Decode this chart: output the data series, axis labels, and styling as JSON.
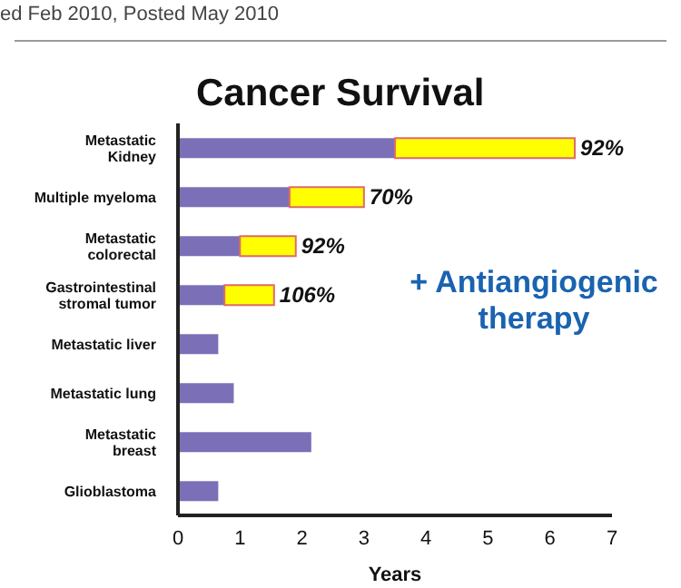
{
  "chart_data": {
    "type": "bar",
    "orientation": "horizontal",
    "stacked": true,
    "title": "Cancer Survival",
    "xlabel": "Years",
    "categories": [
      "Metastatic Kidney",
      "Multiple myeloma",
      "Metastatic colorectal",
      "Gastrointestinal stromal tumor",
      "Metastatic liver",
      "Metastatic lung",
      "Metastatic breast",
      "Glioblastoma"
    ],
    "series": [
      {
        "color": "#7b70b8",
        "values": [
          3.5,
          1.8,
          1.0,
          0.75,
          0.65,
          0.9,
          2.15,
          0.65
        ]
      },
      {
        "color": "#ffff00",
        "values": [
          2.9,
          1.2,
          0.9,
          0.8,
          null,
          null,
          null,
          null
        ]
      }
    ],
    "xlim": [
      0,
      7
    ],
    "xticks": [
      0,
      1,
      2,
      3,
      4,
      5,
      6,
      7
    ],
    "annotations": [
      "ed Feb 2010, Posted May 2010",
      "+ Antiangiogenic therapy",
      {
        "text": "92%",
        "x": 6.4,
        "y": "Metastatic Kidney"
      },
      {
        "text": "70%",
        "x": 3.0,
        "y": "Multiple myeloma"
      },
      {
        "text": "92%",
        "x": 1.9,
        "y": "Metastatic colorectal"
      },
      {
        "text": "106%",
        "x": 1.55,
        "y": "Gastrointestinal stromal tumor"
      }
    ]
  }
}
